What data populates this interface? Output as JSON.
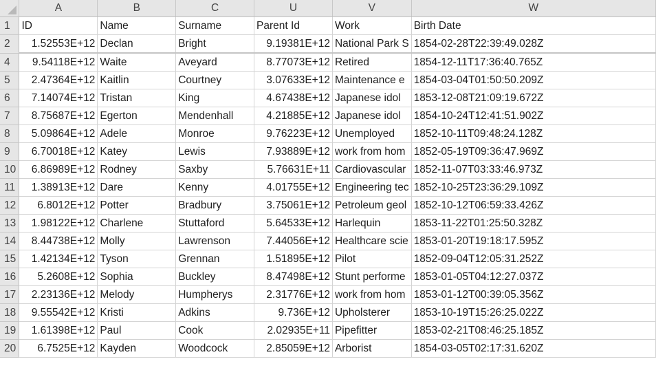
{
  "columns": [
    {
      "letter": "A"
    },
    {
      "letter": "B"
    },
    {
      "letter": "C"
    },
    {
      "letter": "U"
    },
    {
      "letter": "V"
    },
    {
      "letter": "W"
    }
  ],
  "header_row": {
    "row": "1",
    "cells": [
      "ID",
      "Name",
      "Surname",
      "Parent Id",
      "Work",
      "Birth Date"
    ]
  },
  "rows": [
    {
      "row": "2",
      "cells": [
        "1.52553E+12",
        "Declan",
        "Bright",
        "9.19381E+12",
        "National Park S",
        "1854-02-28T22:39:49.028Z"
      ]
    },
    {
      "row": "4",
      "cells": [
        "9.54118E+12",
        "Waite",
        "Aveyard",
        "8.77073E+12",
        "Retired",
        "1854-12-11T17:36:40.765Z"
      ]
    },
    {
      "row": "5",
      "cells": [
        "2.47364E+12",
        "Kaitlin",
        "Courtney",
        "3.07633E+12",
        "Maintenance e",
        "1854-03-04T01:50:50.209Z"
      ]
    },
    {
      "row": "6",
      "cells": [
        "7.14074E+12",
        "Tristan",
        "King",
        "4.67438E+12",
        "Japanese idol",
        "1853-12-08T21:09:19.672Z"
      ]
    },
    {
      "row": "7",
      "cells": [
        "8.75687E+12",
        "Egerton",
        "Mendenhall",
        "4.21885E+12",
        "Japanese idol",
        "1854-10-24T12:41:51.902Z"
      ]
    },
    {
      "row": "8",
      "cells": [
        "5.09864E+12",
        "Adele",
        "Monroe",
        "9.76223E+12",
        "Unemployed",
        "1852-10-11T09:48:24.128Z"
      ]
    },
    {
      "row": "9",
      "cells": [
        "6.70018E+12",
        "Katey",
        "Lewis",
        "7.93889E+12",
        "work from hom",
        "1852-05-19T09:36:47.969Z"
      ]
    },
    {
      "row": "10",
      "cells": [
        "6.86989E+12",
        "Rodney",
        "Saxby",
        "5.76631E+11",
        "Cardiovascular",
        "1852-11-07T03:33:46.973Z"
      ]
    },
    {
      "row": "11",
      "cells": [
        "1.38913E+12",
        "Dare",
        "Kenny",
        "4.01755E+12",
        "Engineering tec",
        "1852-10-25T23:36:29.109Z"
      ]
    },
    {
      "row": "12",
      "cells": [
        "6.8012E+12",
        "Potter",
        "Bradbury",
        "3.75061E+12",
        "Petroleum geol",
        "1852-10-12T06:59:33.426Z"
      ]
    },
    {
      "row": "13",
      "cells": [
        "1.98122E+12",
        "Charlene",
        "Stuttaford",
        "5.64533E+12",
        "Harlequin",
        "1853-11-22T01:25:50.328Z"
      ]
    },
    {
      "row": "14",
      "cells": [
        "8.44738E+12",
        "Molly",
        "Lawrenson",
        "7.44056E+12",
        "Healthcare scie",
        "1853-01-20T19:18:17.595Z"
      ]
    },
    {
      "row": "15",
      "cells": [
        "1.42134E+12",
        "Tyson",
        "Grennan",
        "1.51895E+12",
        "Pilot",
        "1852-09-04T12:05:31.252Z"
      ]
    },
    {
      "row": "16",
      "cells": [
        "5.2608E+12",
        "Sophia",
        "Buckley",
        "8.47498E+12",
        "Stunt performe",
        "1853-01-05T04:12:27.037Z"
      ]
    },
    {
      "row": "17",
      "cells": [
        "2.23136E+12",
        "Melody",
        "Humpherys",
        "2.31776E+12",
        "work from hom",
        "1853-01-12T00:39:05.356Z"
      ]
    },
    {
      "row": "18",
      "cells": [
        "9.55542E+12",
        "Kristi",
        "Adkins",
        "9.736E+12",
        "Upholsterer",
        "1853-10-19T15:26:25.022Z"
      ]
    },
    {
      "row": "19",
      "cells": [
        "1.61398E+12",
        "Paul",
        "Cook",
        "2.02935E+11",
        "Pipefitter",
        "1853-02-21T08:46:25.185Z"
      ]
    },
    {
      "row": "20",
      "cells": [
        "6.7525E+12",
        "Kayden",
        "Woodcock",
        "2.85059E+12",
        "Arborist",
        "1854-03-05T02:17:31.620Z"
      ]
    }
  ]
}
